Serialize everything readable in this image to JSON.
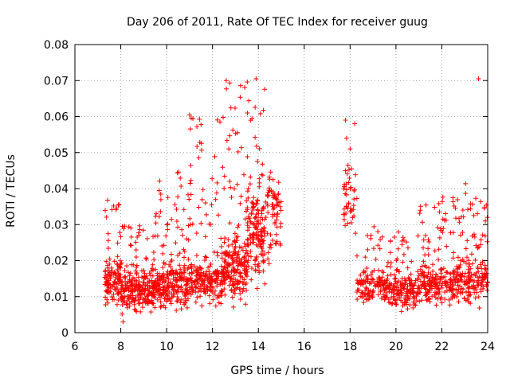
{
  "chart_data": {
    "type": "scatter",
    "title": "Day 206 of 2011, Rate Of TEC Index for receiver guug",
    "xlabel": "GPS time / hours",
    "ylabel": "ROTI / TECUs",
    "xlim": [
      6,
      24
    ],
    "ylim": [
      0,
      0.08
    ],
    "xticks": [
      "6",
      "8",
      "10",
      "12",
      "14",
      "16",
      "18",
      "20",
      "22",
      "24"
    ],
    "yticks": [
      "0",
      "0.01",
      "0.02",
      "0.03",
      "0.04",
      "0.05",
      "0.06",
      "0.07",
      "0.08"
    ],
    "grid": true,
    "marker": "+",
    "series_color": "#ff0000",
    "clusters": [
      {
        "x_start": 7.3,
        "x_end": 8.0,
        "y_low": 0.006,
        "y_mid": 0.016,
        "y_high": 0.038,
        "density": 120
      },
      {
        "x_start": 8.0,
        "x_end": 9.5,
        "y_low": 0.004,
        "y_mid": 0.013,
        "y_high": 0.03,
        "density": 260
      },
      {
        "x_start": 9.5,
        "x_end": 11.0,
        "y_low": 0.005,
        "y_mid": 0.015,
        "y_high": 0.045,
        "density": 250
      },
      {
        "x_start": 11.0,
        "x_end": 12.5,
        "y_low": 0.006,
        "y_mid": 0.016,
        "y_high": 0.06,
        "density": 230
      },
      {
        "x_start": 12.5,
        "x_end": 13.5,
        "y_low": 0.006,
        "y_mid": 0.02,
        "y_high": 0.07,
        "density": 200
      },
      {
        "x_start": 13.5,
        "x_end": 14.3,
        "y_low": 0.01,
        "y_mid": 0.03,
        "y_high": 0.071,
        "density": 170
      },
      {
        "x_start": 14.3,
        "x_end": 15.0,
        "y_low": 0.015,
        "y_mid": 0.035,
        "y_high": 0.047,
        "density": 70
      },
      {
        "x_start": 17.7,
        "x_end": 18.3,
        "y_low": 0.022,
        "y_mid": 0.04,
        "y_high": 0.06,
        "density": 45
      },
      {
        "x_start": 18.3,
        "x_end": 19.5,
        "y_low": 0.007,
        "y_mid": 0.014,
        "y_high": 0.03,
        "density": 120
      },
      {
        "x_start": 19.5,
        "x_end": 21.0,
        "y_low": 0.005,
        "y_mid": 0.013,
        "y_high": 0.028,
        "density": 190
      },
      {
        "x_start": 21.0,
        "x_end": 22.5,
        "y_low": 0.006,
        "y_mid": 0.015,
        "y_high": 0.038,
        "density": 200
      },
      {
        "x_start": 22.5,
        "x_end": 24.0,
        "y_low": 0.006,
        "y_mid": 0.016,
        "y_high": 0.042,
        "density": 210
      }
    ],
    "outliers": [
      {
        "x": 11.0,
        "y": 0.0605
      },
      {
        "x": 23.6,
        "y": 0.0705
      },
      {
        "x": 17.8,
        "y": 0.059
      },
      {
        "x": 18.2,
        "y": 0.058
      },
      {
        "x": 12.6,
        "y": 0.07
      },
      {
        "x": 13.9,
        "y": 0.0705
      },
      {
        "x": 8.1,
        "y": 0.003
      }
    ]
  }
}
